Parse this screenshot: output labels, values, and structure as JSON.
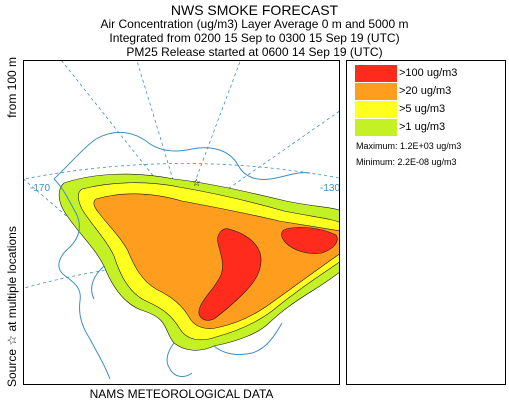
{
  "header": {
    "title": "NWS SMOKE FORECAST",
    "line2": "Air Concentration (ug/m3) Layer Average    0 m and  5000 m",
    "line3": "Integrated from 0200 15 Sep to 0300 15 Sep 19 (UTC)",
    "line4": "PM25 Release started at 0600 14 Sep 19 (UTC)"
  },
  "side_label": {
    "part1": "Source ☆  at multiple locations",
    "part2": "from   100 m"
  },
  "footer": {
    "text": "NAMS METEOROLOGICAL DATA"
  },
  "map": {
    "lon_labels": [
      "-170",
      "-130"
    ],
    "colors": {
      "level_100": "#ff2b1c",
      "level_20": "#ff9d1e",
      "level_5": "#ffff20",
      "level_1": "#c4f026",
      "coast": "#3d8fc4",
      "grid": "#3d8fc4"
    }
  },
  "legend": {
    "items": [
      {
        "label": ">100 ug/m3",
        "color": "#ff2b1c"
      },
      {
        "label": ">20 ug/m3",
        "color": "#ff9d1e"
      },
      {
        "label": ">5 ug/m3",
        "color": "#ffff20"
      },
      {
        "label": ">1 ug/m3",
        "color": "#c4f026"
      }
    ],
    "maximum": "Maximum: 1.2E+03 ug/m3",
    "minimum": "Minimum: 2.2E-08 ug/m3"
  }
}
